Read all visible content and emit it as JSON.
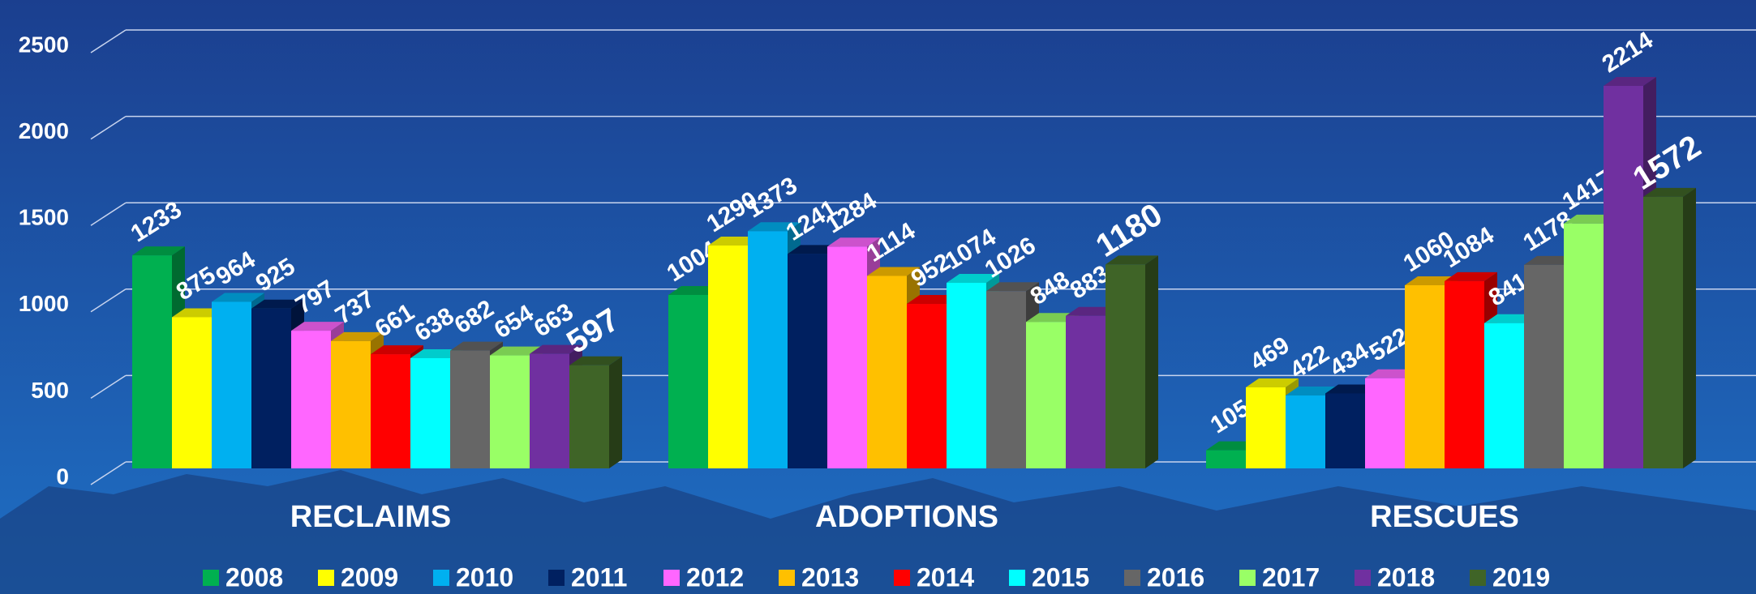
{
  "chart_data": {
    "type": "bar3d",
    "categories": [
      "RECLAIMS",
      "ADOPTIONS",
      "RESCUES"
    ],
    "series": [
      {
        "name": "2008",
        "color": "#00b050",
        "values": [
          1233,
          1004,
          105
        ]
      },
      {
        "name": "2009",
        "color": "#ffff00",
        "values": [
          875,
          1290,
          469
        ]
      },
      {
        "name": "2010",
        "color": "#00b0f0",
        "values": [
          964,
          1373,
          422
        ]
      },
      {
        "name": "2011",
        "color": "#002060",
        "values": [
          925,
          1241,
          434
        ]
      },
      {
        "name": "2012",
        "color": "#ff66ff",
        "values": [
          797,
          1284,
          522
        ]
      },
      {
        "name": "2013",
        "color": "#ffc000",
        "values": [
          737,
          1114,
          1060
        ]
      },
      {
        "name": "2014",
        "color": "#ff0000",
        "values": [
          661,
          952,
          1084
        ]
      },
      {
        "name": "2015",
        "color": "#00ffff",
        "values": [
          638,
          1074,
          841
        ]
      },
      {
        "name": "2016",
        "color": "#666666",
        "values": [
          682,
          1026,
          1178
        ]
      },
      {
        "name": "2017",
        "color": "#99ff66",
        "values": [
          654,
          848,
          1417
        ]
      },
      {
        "name": "2018",
        "color": "#7030a0",
        "values": [
          663,
          883,
          2214
        ]
      },
      {
        "name": "2019",
        "color": "#3f6427",
        "values": [
          597,
          1180,
          1572
        ]
      }
    ],
    "ylim": [
      0,
      2500
    ],
    "yticks": [
      0,
      500,
      1000,
      1500,
      2000,
      2500
    ],
    "grid": true,
    "legend": "bottom"
  }
}
